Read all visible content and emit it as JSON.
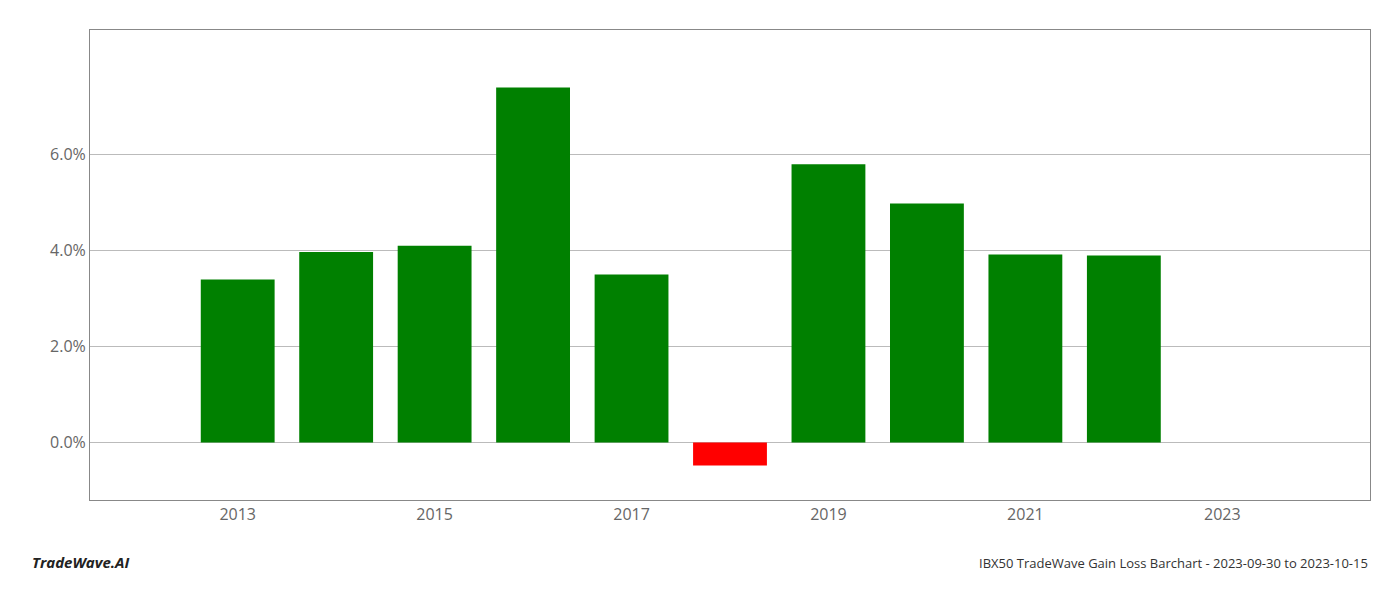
{
  "chart_data": {
    "type": "bar",
    "title": "IBX50 TradeWave Gain Loss Barchart - 2023-09-30 to 2023-10-15",
    "annotations": [
      "TradeWave.AI"
    ],
    "x": [
      2013,
      2014,
      2015,
      2016,
      2017,
      2018,
      2019,
      2020,
      2021,
      2022
    ],
    "values": [
      0.034,
      0.0397,
      0.041,
      0.074,
      0.035,
      -0.0048,
      0.058,
      0.0498,
      0.0392,
      0.039
    ],
    "colors": [
      "#008000",
      "#008000",
      "#008000",
      "#008000",
      "#008000",
      "#ff0000",
      "#008000",
      "#008000",
      "#008000",
      "#008000"
    ],
    "xlim": [
      2011.5,
      2024.5
    ],
    "xticks": [
      2013,
      2015,
      2017,
      2019,
      2021,
      2023
    ],
    "ylim": [
      -0.012,
      0.086
    ],
    "yticks": [
      {
        "value": 0.0,
        "label": "0.0%"
      },
      {
        "value": 0.02,
        "label": "2.0%"
      },
      {
        "value": 0.04,
        "label": "4.0%"
      },
      {
        "value": 0.06,
        "label": "6.0%"
      }
    ],
    "grid": true
  }
}
